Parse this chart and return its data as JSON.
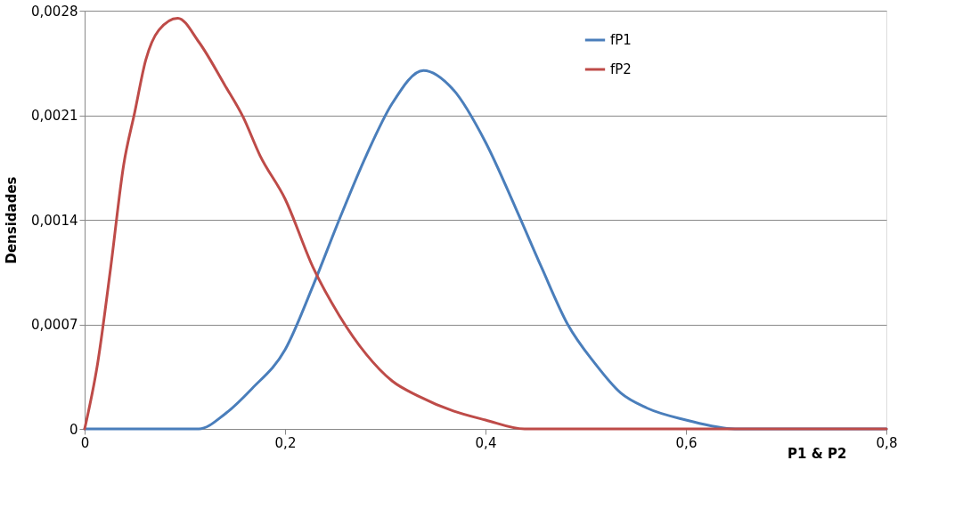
{
  "chart_data": {
    "type": "line",
    "xlabel": "P1  & P2",
    "ylabel": "Densidades",
    "xlim": [
      0,
      0.8
    ],
    "ylim": [
      0,
      0.0028
    ],
    "xticks": [
      0,
      {
        "value": 0.2,
        "label": "0,2"
      },
      {
        "value": 0.4,
        "label": "0,4"
      },
      {
        "value": 0.6,
        "label": "0,6"
      },
      {
        "value": 0.8,
        "label": "0,8"
      }
    ],
    "yticks": [
      0,
      {
        "value": 0.0007,
        "label": "0,0007"
      },
      {
        "value": 0.0014,
        "label": "0,0014"
      },
      {
        "value": 0.0021,
        "label": "0,0021"
      },
      {
        "value": 0.0028,
        "label": "0,0028"
      }
    ],
    "grid": "y",
    "legend": "top right",
    "marker": "none",
    "line_style": "solid",
    "series": [
      {
        "name": "fP1",
        "color": "#4a7ebb",
        "x": [
          0,
          0.079,
          0.114,
          0.14,
          0.167,
          0.2,
          0.228,
          0.254,
          0.281,
          0.307,
          0.338,
          0.368,
          0.4,
          0.43,
          0.456,
          0.482,
          0.509,
          0.535,
          0.561,
          0.6,
          0.649,
          0.7,
          0.8
        ],
        "values": [
          0,
          0,
          0,
          0.0001,
          0.00027,
          0.00053,
          0.00096,
          0.0014,
          0.00183,
          0.00218,
          0.0024,
          0.00227,
          0.00192,
          0.00148,
          0.00108,
          0.0007,
          0.00044,
          0.00024,
          0.00014,
          6e-05,
          0,
          0,
          0
        ]
      },
      {
        "name": "fP2",
        "color": "#be4b48",
        "x": [
          0,
          0.013,
          0.026,
          0.039,
          0.05,
          0.061,
          0.074,
          0.093,
          0.114,
          0.14,
          0.158,
          0.175,
          0.2,
          0.228,
          0.254,
          0.281,
          0.307,
          0.333,
          0.368,
          0.4,
          0.439,
          0.474,
          0.561,
          0.8
        ],
        "values": [
          0,
          0.00044,
          0.00108,
          0.00177,
          0.00212,
          0.00247,
          0.00267,
          0.00275,
          0.00259,
          0.0023,
          0.00209,
          0.00183,
          0.00154,
          0.00108,
          0.00076,
          0.0005,
          0.00032,
          0.00022,
          0.00012,
          6e-05,
          0,
          0,
          0,
          0
        ]
      }
    ]
  }
}
